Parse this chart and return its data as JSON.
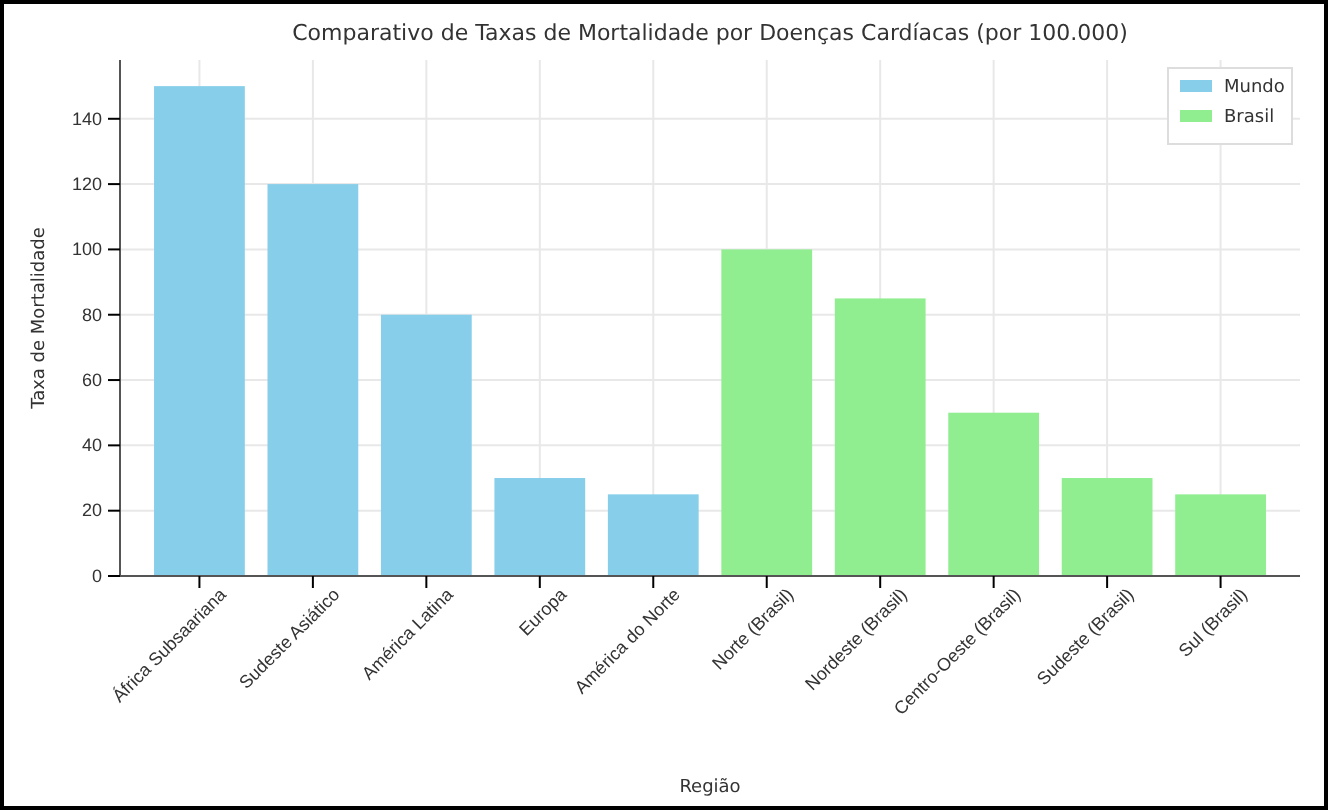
{
  "chart_data": {
    "type": "bar",
    "title": "Comparativo de Taxas de Mortalidade por Doenças Cardíacas (por 100.000)",
    "xlabel": "Região",
    "ylabel": "Taxa de Mortalidade",
    "categories": [
      "África Subsaariana",
      "Sudeste Asiático",
      "América Latina",
      "Europa",
      "América do Norte",
      "Norte (Brasil)",
      "Nordeste (Brasil)",
      "Centro-Oeste (Brasil)",
      "Sudeste (Brasil)",
      "Sul (Brasil)"
    ],
    "series": [
      {
        "name": "Mundo",
        "color": "#87ceeb",
        "values": [
          150,
          120,
          80,
          30,
          25,
          null,
          null,
          null,
          null,
          null
        ]
      },
      {
        "name": "Brasil",
        "color": "#90ee90",
        "values": [
          null,
          null,
          null,
          null,
          null,
          100,
          85,
          50,
          30,
          25
        ]
      }
    ],
    "ylim": [
      0,
      158
    ],
    "yticks": [
      0,
      20,
      40,
      60,
      80,
      100,
      120,
      140
    ],
    "grid": true,
    "legend": "top right"
  }
}
